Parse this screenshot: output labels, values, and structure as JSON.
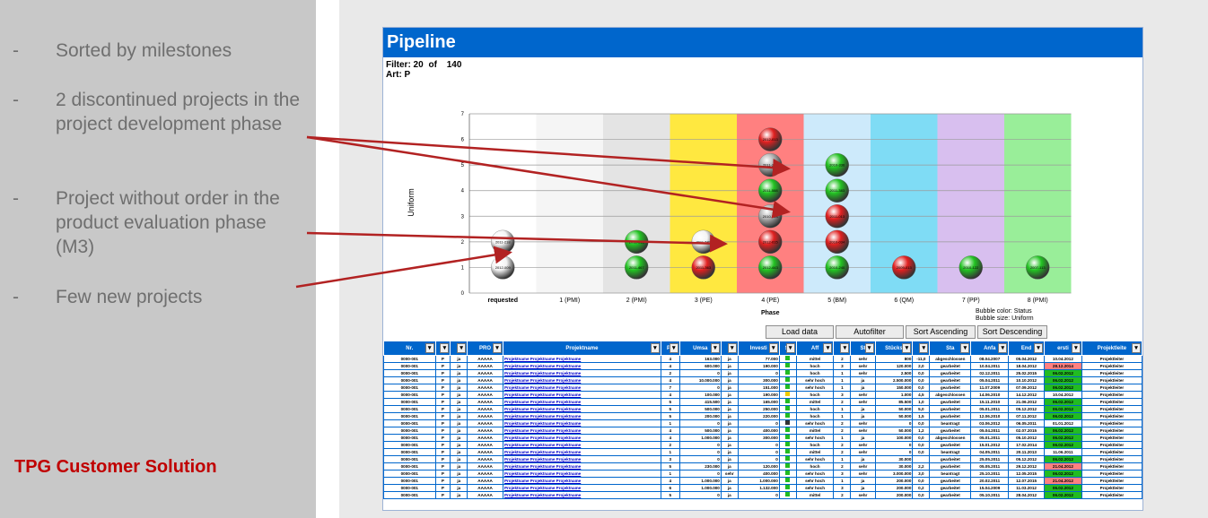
{
  "left_panel": {
    "bullets": [
      {
        "dash": "-",
        "text": "Sorted by milestones"
      },
      {
        "dash": "-",
        "text": "2 discontinued projects in the project development phase"
      },
      {
        "dash": "-",
        "text": "Project without order in the product evaluation phase (M3)"
      },
      {
        "dash": "-",
        "text": "Few new projects"
      }
    ],
    "brand": "TPG Customer Solution"
  },
  "sheet": {
    "title": "Pipeline",
    "filter_label": "Filter: 20",
    "filter_of": "of",
    "filter_total": "140",
    "art_label": "Art: P"
  },
  "chart_data": {
    "type": "scatter",
    "title": "",
    "xlabel": "Phase",
    "ylabel": "Uniform",
    "ylim": [
      0,
      7
    ],
    "yticks": [
      "0",
      "1",
      "2",
      "3",
      "4",
      "5",
      "6",
      "7"
    ],
    "categories": [
      "requested",
      "1 (PMI)",
      "2 (PMI)",
      "3 (PE)",
      "4 (PE)",
      "5 (BM)",
      "6 (QM)",
      "7 (PP)",
      "8 (PMI)"
    ],
    "phase_colors": [
      "#ffffff",
      "#f5f5f5",
      "#e4e4e4",
      "#ffe840",
      "#ff8080",
      "#cdeafb",
      "#7fdcf5",
      "#d8bfef",
      "#99ee99"
    ],
    "legend_lines": [
      "Bubble color: Status",
      "Bubble size: Uniform"
    ],
    "status_colors": {
      "green": "#22c322",
      "red": "#e12020",
      "gray": "#b0b0b0",
      "white": "#f4f4f4"
    },
    "points": [
      {
        "phase": 0,
        "y": 2,
        "status": "white",
        "label": "2011-218"
      },
      {
        "phase": 0,
        "y": 1,
        "status": "white",
        "label": "2012-009"
      },
      {
        "phase": 2,
        "y": 2,
        "status": "green",
        "label": "2012-018"
      },
      {
        "phase": 2,
        "y": 1,
        "status": "green",
        "label": "2011-467"
      },
      {
        "phase": 3,
        "y": 2,
        "status": "white",
        "label": "2011-582"
      },
      {
        "phase": 3,
        "y": 1,
        "status": "red",
        "label": "2011-363"
      },
      {
        "phase": 4,
        "y": 6,
        "status": "red",
        "label": "2012-013"
      },
      {
        "phase": 4,
        "y": 5,
        "status": "gray",
        "label": "2011-284"
      },
      {
        "phase": 4,
        "y": 4,
        "status": "green",
        "label": "2011-588"
      },
      {
        "phase": 4,
        "y": 3,
        "status": "gray",
        "label": "2010-503"
      },
      {
        "phase": 4,
        "y": 2,
        "status": "red",
        "label": "2012-015"
      },
      {
        "phase": 4,
        "y": 1,
        "status": "green",
        "label": "2012-443"
      },
      {
        "phase": 5,
        "y": 5,
        "status": "green",
        "label": "2010-336"
      },
      {
        "phase": 5,
        "y": 4,
        "status": "green",
        "label": "2011-383"
      },
      {
        "phase": 5,
        "y": 3,
        "status": "red",
        "label": "2011-013"
      },
      {
        "phase": 5,
        "y": 2,
        "status": "red",
        "label": "2010-034"
      },
      {
        "phase": 5,
        "y": 1,
        "status": "green",
        "label": "2010-240"
      },
      {
        "phase": 6,
        "y": 1,
        "status": "red",
        "label": "2009-013"
      },
      {
        "phase": 7,
        "y": 1,
        "status": "green",
        "label": "2010-122"
      },
      {
        "phase": 8,
        "y": 1,
        "status": "green",
        "label": "2007-113"
      }
    ]
  },
  "buttons": {
    "load": "Load data",
    "autofilter": "Autofilter",
    "sort_asc": "Sort Ascending",
    "sort_desc": "Sort Descending"
  },
  "table": {
    "headers": [
      "Nr.",
      "",
      "",
      "PRO",
      "Projektname",
      "Ph",
      "Umsa",
      "",
      "Investi",
      "St",
      "Aff",
      "P",
      "St",
      "Stücks",
      "",
      "Sta",
      "Anfa",
      "End",
      "ersti",
      "Projektleite"
    ],
    "rows": [
      {
        "c": [
          "0000-001",
          "P",
          "ja",
          "AAAAA",
          "Projektname Projektname Projektname",
          "4",
          "163.000",
          "ja",
          "77.000",
          "g",
          "mittel",
          "2",
          "sehr",
          "800",
          "-11,0",
          "abgeschlossen",
          "08.04.2007",
          "05.04.2012",
          "10.04.2012",
          "Projektleiter"
        ],
        "s": ""
      },
      {
        "c": [
          "0000-001",
          "P",
          "ja",
          "AAAAA",
          "Projektname Projektname Projektname",
          "4",
          "600.000",
          "ja",
          "190.000",
          "g",
          "hoch",
          "3",
          "sehr",
          "120.000",
          "2,0",
          "gearbeitet",
          "10.04.2011",
          "18.04.2012",
          "28.12.2014",
          "Projektleiter"
        ],
        "s": "bad"
      },
      {
        "c": [
          "0000-001",
          "P",
          "ja",
          "AAAAA",
          "Projektname Projektname Projektname",
          "2",
          "0",
          "ja",
          "0",
          "g",
          "hoch",
          "1",
          "sehr",
          "2.500",
          "0,0",
          "gearbeitet",
          "02.12.2011",
          "25.02.2015",
          "06.02.2012",
          "Projektleiter"
        ],
        "s": "ok"
      },
      {
        "c": [
          "0000-001",
          "P",
          "ja",
          "AAAAA",
          "Projektname Projektname Projektname",
          "4",
          "10.000.000",
          "ja",
          "300.000",
          "g",
          "sehr hoch",
          "1",
          "ja",
          "2.500.000",
          "0,0",
          "gearbeitet",
          "05.04.2011",
          "10.10.2012",
          "06.02.2012",
          "Projektleiter"
        ],
        "s": "ok"
      },
      {
        "c": [
          "0000-001",
          "P",
          "ja",
          "AAAAA",
          "Projektname Projektname Projektname",
          "7",
          "0",
          "ja",
          "151.000",
          "g",
          "sehr hoch",
          "1",
          "ja",
          "150.000",
          "0,0",
          "gearbeitet",
          "11.07.2009",
          "07.09.2012",
          "06.02.2012",
          "Projektleiter"
        ],
        "s": "ok"
      },
      {
        "c": [
          "0000-001",
          "P",
          "ja",
          "AAAAA",
          "Projektname Projektname Projektname",
          "4",
          "100.000",
          "ja",
          "190.000",
          "y",
          "hoch",
          "3",
          "sehr",
          "1.000",
          "4,5",
          "abgeschlossen",
          "14.06.2010",
          "14.12.2012",
          "10.04.2012",
          "Projektleiter"
        ],
        "s": ""
      },
      {
        "c": [
          "0000-001",
          "P",
          "ja",
          "AAAAA",
          "Projektname Projektname Projektname",
          "5",
          "415.500",
          "ja",
          "165.000",
          "g",
          "mittel",
          "2",
          "sehr",
          "85.500",
          "1,0",
          "gearbeitet",
          "15.11.2010",
          "21.06.2012",
          "06.02.2012",
          "Projektleiter"
        ],
        "s": "ok"
      },
      {
        "c": [
          "0000-001",
          "P",
          "ja",
          "AAAAA",
          "Projektname Projektname Projektname",
          "5",
          "500.000",
          "ja",
          "250.000",
          "g",
          "hoch",
          "1",
          "ja",
          "50.000",
          "5,0",
          "gearbeitet",
          "05.01.2011",
          "05.12.2012",
          "06.02.2012",
          "Projektleiter"
        ],
        "s": "ok"
      },
      {
        "c": [
          "0000-001",
          "P",
          "ja",
          "AAAAA",
          "Projektname Projektname Projektname",
          "5",
          "200.000",
          "ja",
          "220.000",
          "g",
          "hoch",
          "1",
          "ja",
          "50.000",
          "1,5",
          "gearbeitet",
          "12.06.2010",
          "07.11.2012",
          "06.02.2012",
          "Projektleiter"
        ],
        "s": "ok"
      },
      {
        "c": [
          "0000-001",
          "P",
          "ja",
          "AAAAA",
          "Projektname Projektname Projektname",
          "1",
          "0",
          "ja",
          "0",
          "k",
          "sehr hoch",
          "2",
          "sehr",
          "0",
          "0,0",
          "beantragt",
          "03.06.2012",
          "06.05.2011",
          "01.01.2012",
          "Projektleiter"
        ],
        "s": ""
      },
      {
        "c": [
          "0000-001",
          "P",
          "ja",
          "AAAAA",
          "Projektname Projektname Projektname",
          "4",
          "500.000",
          "ja",
          "400.000",
          "g",
          "mittel",
          "2",
          "sehr",
          "50.000",
          "1,2",
          "gearbeitet",
          "05.04.2011",
          "02.07.2015",
          "06.02.2012",
          "Projektleiter"
        ],
        "s": "ok"
      },
      {
        "c": [
          "0000-001",
          "P",
          "ja",
          "AAAAA",
          "Projektname Projektname Projektname",
          "4",
          "1.000.000",
          "ja",
          "300.000",
          "g",
          "sehr hoch",
          "1",
          "ja",
          "100.000",
          "0,0",
          "abgeschlossen",
          "05.01.2011",
          "05.10.2012",
          "06.02.2012",
          "Projektleiter"
        ],
        "s": "ok"
      },
      {
        "c": [
          "0000-001",
          "P",
          "ja",
          "AAAAA",
          "Projektname Projektname Projektname",
          "2",
          "0",
          "ja",
          "0",
          "g",
          "hoch",
          "2",
          "sehr",
          "0",
          "0,0",
          "gearbeitet",
          "15.01.2012",
          "17.02.2014",
          "06.02.2012",
          "Projektleiter"
        ],
        "s": "ok"
      },
      {
        "c": [
          "0000-001",
          "P",
          "ja",
          "AAAAA",
          "Projektname Projektname Projektname",
          "1",
          "0",
          "ja",
          "0",
          "g",
          "mittel",
          "2",
          "sehr",
          "0",
          "0,0",
          "beantragt",
          "04.05.2011",
          "20.11.2013",
          "11.06.2011",
          "Projektleiter"
        ],
        "s": ""
      },
      {
        "c": [
          "0000-001",
          "P",
          "ja",
          "AAAAA",
          "Projektname Projektname Projektname",
          "3",
          "0",
          "ja",
          "0",
          "g",
          "sehr hoch",
          "1",
          "ja",
          "30.000",
          "",
          "gearbeitet",
          "25.05.2011",
          "05.12.2012",
          "06.02.2012",
          "Projektleiter"
        ],
        "s": "ok"
      },
      {
        "c": [
          "0000-001",
          "P",
          "ja",
          "AAAAA",
          "Projektname Projektname Projektname",
          "5",
          "230.000",
          "ja",
          "120.000",
          "g",
          "hoch",
          "2",
          "sehr",
          "30.000",
          "2,2",
          "gearbeitet",
          "05.05.2011",
          "29.12.2012",
          "21.04.2012",
          "Projektleiter"
        ],
        "s": "bad"
      },
      {
        "c": [
          "0000-001",
          "P",
          "ja",
          "AAAAA",
          "Projektname Projektname Projektname",
          "1",
          "0",
          "sehr",
          "400.000",
          "g",
          "sehr hoch",
          "3",
          "sehr",
          "3.000.000",
          "3,0",
          "beantragt",
          "25.10.2011",
          "12.05.2015",
          "06.02.2012",
          "Projektleiter"
        ],
        "s": "ok"
      },
      {
        "c": [
          "0000-001",
          "P",
          "ja",
          "AAAAA",
          "Projektname Projektname Projektname",
          "4",
          "1.000.000",
          "ja",
          "1.000.000",
          "g",
          "sehr hoch",
          "1",
          "ja",
          "200.000",
          "0,0",
          "gearbeitet",
          "20.02.2011",
          "12.07.2015",
          "21.04.2012",
          "Projektleiter"
        ],
        "s": "bad"
      },
      {
        "c": [
          "0000-001",
          "P",
          "ja",
          "AAAAA",
          "Projektname Projektname Projektname",
          "6",
          "1.000.000",
          "ja",
          "1.132.000",
          "g",
          "sehr hoch",
          "3",
          "ja",
          "200.000",
          "0,2",
          "gearbeitet",
          "15.04.2009",
          "11.03.2012",
          "06.02.2012",
          "Projektleiter"
        ],
        "s": "ok"
      },
      {
        "c": [
          "0000-001",
          "P",
          "ja",
          "AAAAA",
          "Projektname Projektname Projektname",
          "5",
          "0",
          "ja",
          "0",
          "g",
          "mittel",
          "2",
          "sehr",
          "200.000",
          "0,0",
          "gearbeitet",
          "05.10.2011",
          "28.04.2012",
          "06.02.2012",
          "Projektleiter"
        ],
        "s": "ok"
      }
    ]
  }
}
